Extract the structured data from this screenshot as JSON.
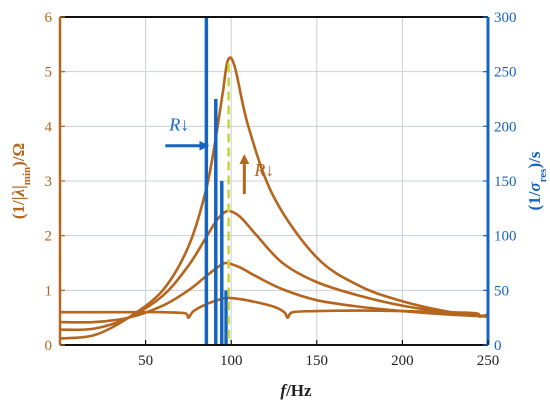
{
  "chart_data": {
    "type": "line",
    "xlabel_main": "f",
    "xlabel_unit": "/Hz",
    "ylabel_left": "(1/|λ|min)/Ω",
    "ylabel_left_parts": {
      "open": "(1/|",
      "lambda": "λ",
      "bar": "|",
      "sub": "min",
      "close": ")/Ω"
    },
    "ylabel_right_parts": {
      "open": "(1/",
      "sigma": "σ",
      "sub": "res",
      "close": ")/s"
    },
    "xlim": [
      0,
      250
    ],
    "ylim_left": [
      0,
      6
    ],
    "ylim_right": [
      0,
      300
    ],
    "xticks": [
      50,
      100,
      150,
      200,
      250
    ],
    "yticks_left": [
      0,
      1,
      2,
      3,
      4,
      5,
      6
    ],
    "yticks_right": [
      0,
      50,
      100,
      150,
      200,
      250,
      300
    ],
    "grid": true,
    "colors": {
      "left_axis": "#b5651d",
      "right_axis": "#1565c0",
      "curves": "#b5651d",
      "bars": "#1565c0",
      "dashed_line": "#c8d43a"
    },
    "series": [
      {
        "x": [
          0,
          20,
          40,
          60,
          75,
          85,
          90,
          95,
          98,
          102,
          110,
          125,
          150,
          175,
          200,
          225,
          250
        ],
        "y": [
          0.12,
          0.18,
          0.5,
          1.0,
          1.8,
          2.8,
          3.6,
          4.6,
          5.2,
          5.1,
          4.0,
          2.7,
          1.6,
          1.08,
          0.8,
          0.62,
          0.52
        ]
      },
      {
        "x": [
          0,
          20,
          40,
          60,
          75,
          85,
          92,
          98,
          105,
          115,
          130,
          150,
          175,
          200,
          225,
          250
        ],
        "y": [
          0.28,
          0.3,
          0.5,
          0.9,
          1.45,
          1.95,
          2.3,
          2.45,
          2.35,
          2.0,
          1.5,
          1.15,
          0.9,
          0.72,
          0.6,
          0.52
        ]
      },
      {
        "x": [
          0,
          20,
          40,
          60,
          75,
          85,
          92,
          97,
          105,
          115,
          130,
          150,
          175,
          200,
          225,
          250
        ],
        "y": [
          0.42,
          0.42,
          0.5,
          0.72,
          1.0,
          1.25,
          1.42,
          1.5,
          1.42,
          1.25,
          1.02,
          0.82,
          0.7,
          0.62,
          0.56,
          0.52
        ]
      },
      {
        "x": [
          0,
          20,
          28,
          40,
          60,
          73,
          75,
          78,
          85,
          92,
          97,
          105,
          115,
          125,
          131,
          133,
          136,
          150,
          175,
          200,
          225,
          243,
          245,
          250
        ],
        "y": [
          0.6,
          0.6,
          0.6,
          0.6,
          0.6,
          0.58,
          0.5,
          0.62,
          0.74,
          0.82,
          0.86,
          0.84,
          0.78,
          0.7,
          0.6,
          0.5,
          0.6,
          0.62,
          0.63,
          0.62,
          0.6,
          0.58,
          0.52,
          0.56
        ]
      }
    ],
    "bars": [
      {
        "x": 85.5,
        "value": 300
      },
      {
        "x": 91,
        "value": 225
      },
      {
        "x": 94.5,
        "value": 150
      },
      {
        "x": 97,
        "value": 50
      }
    ],
    "dashed_vertical_x": 98.5,
    "annotations": [
      {
        "text": "R↓",
        "color": "#1565c0",
        "near_x": 72,
        "near_y_left": 3.7,
        "arrow": "right"
      },
      {
        "text": "R↓",
        "color": "#b5651d",
        "near_x": 110,
        "near_y_left": 3.2,
        "arrow": "up"
      }
    ]
  }
}
